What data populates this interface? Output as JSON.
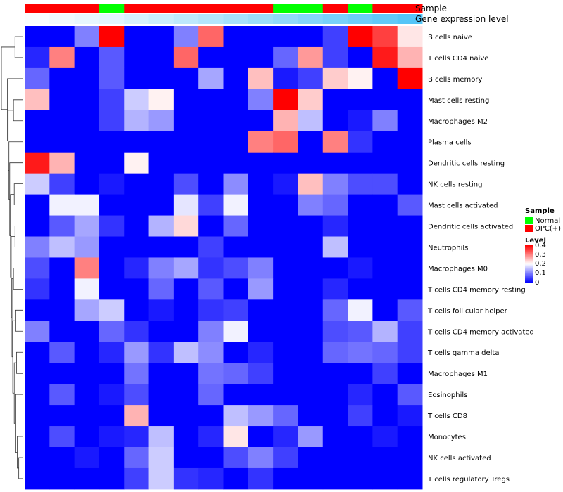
{
  "chart_data": {
    "type": "heatmap",
    "title": "",
    "color_scale": {
      "low": "#0000FF",
      "mid": "#FFFFFF",
      "high": "#FF0000",
      "min": 0,
      "mid_value": 0.2,
      "max": 0.4
    },
    "annotations": [
      {
        "name": "Sample",
        "values": [
          "OPC(+)",
          "OPC(+)",
          "OPC(+)",
          "Normal",
          "OPC(+)",
          "OPC(+)",
          "OPC(+)",
          "OPC(+)",
          "OPC(+)",
          "OPC(+)",
          "Normal",
          "Normal",
          "OPC(+)",
          "Normal",
          "OPC(+)",
          "OPC(+)"
        ]
      },
      {
        "name": "Gene expression level",
        "values": [
          0.02,
          0.05,
          0.08,
          0.1,
          0.14,
          0.18,
          0.22,
          0.26,
          0.3,
          0.34,
          0.38,
          0.42,
          0.46,
          0.5,
          0.54,
          0.58
        ]
      }
    ],
    "rows": [
      "B cells naive",
      "T cells CD4 naive",
      "B cells memory",
      "Mast cells resting",
      "Macrophages M2",
      "Plasma cells",
      "Dendritic cells resting",
      "NK cells resting",
      "Mast cells activated",
      "Dendritic cells activated",
      "Neutrophils",
      "Macrophages M0",
      "T cells CD4 memory resting",
      "T cells follicular helper",
      "T cells CD4 memory activated",
      "T cells gamma delta",
      "Macrophages M1",
      "Eosinophils",
      "T cells CD8",
      "Monocytes",
      "NK cells activated",
      "T cells regulatory  Tregs"
    ],
    "values": [
      [
        0,
        0,
        0.1,
        0.4,
        0,
        0,
        0.1,
        0.32,
        0,
        0,
        0,
        0,
        0.05,
        0.4,
        0.35,
        0.22
      ],
      [
        0.03,
        0.3,
        0,
        0.07,
        0,
        0,
        0.32,
        0,
        0,
        0,
        0.08,
        0.28,
        0.05,
        0,
        0.38,
        0.26
      ],
      [
        0.08,
        0,
        0,
        0.07,
        0,
        0,
        0,
        0.13,
        0,
        0.25,
        0.02,
        0.05,
        0.24,
        0.21,
        0,
        0.4
      ],
      [
        0.25,
        0,
        0,
        0.05,
        0.16,
        0.21,
        0,
        0,
        0,
        0.1,
        0.4,
        0.24,
        0,
        0,
        0,
        0
      ],
      [
        0,
        0,
        0,
        0.05,
        0.14,
        0.12,
        0,
        0,
        0,
        0,
        0.26,
        0.15,
        0,
        0.02,
        0.1,
        0
      ],
      [
        0,
        0,
        0,
        0,
        0,
        0,
        0,
        0,
        0,
        0.3,
        0.32,
        0,
        0.3,
        0.04,
        0,
        0
      ],
      [
        0.38,
        0.26,
        0,
        0,
        0.21,
        0,
        0,
        0,
        0,
        0,
        0,
        0,
        0,
        0,
        0,
        0
      ],
      [
        0.16,
        0.05,
        0,
        0.02,
        0,
        0,
        0.06,
        0,
        0.11,
        0,
        0.02,
        0.25,
        0.1,
        0.06,
        0.06,
        0
      ],
      [
        0,
        0.19,
        0.19,
        0,
        0,
        0,
        0.18,
        0.05,
        0.19,
        0,
        0,
        0.1,
        0.08,
        0,
        0,
        0.07
      ],
      [
        0,
        0.07,
        0.13,
        0.04,
        0,
        0.14,
        0.23,
        0,
        0.08,
        0,
        0,
        0,
        0.03,
        0,
        0,
        0
      ],
      [
        0.1,
        0.15,
        0.12,
        0,
        0,
        0,
        0,
        0.05,
        0,
        0,
        0,
        0,
        0.15,
        0,
        0,
        0
      ],
      [
        0.06,
        0,
        0.3,
        0,
        0.03,
        0.1,
        0.13,
        0.04,
        0.06,
        0.1,
        0,
        0,
        0,
        0.02,
        0,
        0
      ],
      [
        0.04,
        0,
        0.19,
        0,
        0,
        0.08,
        0,
        0.07,
        0,
        0.12,
        0,
        0,
        0.03,
        0,
        0,
        0
      ],
      [
        0,
        0,
        0.13,
        0.16,
        0,
        0.02,
        0,
        0.04,
        0.05,
        0,
        0,
        0,
        0.08,
        0.19,
        0,
        0.07
      ],
      [
        0.1,
        0,
        0,
        0.08,
        0.04,
        0,
        0,
        0.1,
        0.19,
        0,
        0,
        0,
        0.06,
        0.07,
        0.14,
        0.05
      ],
      [
        0,
        0.07,
        0,
        0.03,
        0.12,
        0.04,
        0.15,
        0.11,
        0,
        0.03,
        0,
        0,
        0.08,
        0.09,
        0.08,
        0.05
      ],
      [
        0,
        0,
        0,
        0,
        0.09,
        0,
        0,
        0.09,
        0.08,
        0.05,
        0,
        0,
        0,
        0,
        0.05,
        0
      ],
      [
        0,
        0.07,
        0,
        0.02,
        0.06,
        0,
        0,
        0.08,
        0,
        0,
        0,
        0,
        0,
        0.03,
        0,
        0.07
      ],
      [
        0,
        0,
        0,
        0,
        0.26,
        0,
        0,
        0,
        0.15,
        0.12,
        0.08,
        0,
        0,
        0.05,
        0,
        0.02
      ],
      [
        0,
        0.06,
        0,
        0.02,
        0.03,
        0.15,
        0,
        0.03,
        0.22,
        0,
        0.03,
        0.12,
        0,
        0,
        0.02,
        0
      ],
      [
        0,
        0,
        0.02,
        0,
        0.08,
        0.16,
        0,
        0,
        0.06,
        0.1,
        0.05,
        0,
        0,
        0,
        0,
        0
      ],
      [
        0,
        0,
        0,
        0,
        0.05,
        0.16,
        0.04,
        0.03,
        0,
        0.04,
        0,
        0,
        0,
        0,
        0,
        0
      ]
    ],
    "dendrogram": [
      [
        0,
        1,
        10
      ],
      [
        20,
        21,
        5
      ],
      [
        19,
        "m1",
        7
      ],
      [
        17,
        "m2",
        9
      ],
      [
        15,
        16,
        8
      ],
      [
        "m3",
        "m4",
        11
      ],
      [
        13,
        14,
        9
      ],
      [
        "m5",
        "m6",
        13
      ],
      [
        11,
        12,
        12
      ],
      [
        "m7",
        "m8",
        14
      ],
      [
        9,
        10,
        10
      ],
      [
        "m9",
        "m10",
        15
      ],
      [
        7,
        8,
        11
      ],
      [
        "m11",
        "m12",
        16
      ],
      [
        6,
        "m13",
        17
      ],
      [
        5,
        "m14",
        18
      ],
      [
        3,
        4,
        12
      ],
      [
        "m15",
        "m16",
        19
      ],
      [
        2,
        "m17",
        20
      ],
      [
        "m0",
        "m18",
        28
      ]
    ],
    "legends": {
      "sample": {
        "title": "Sample",
        "items": [
          {
            "label": "Normal",
            "color": "#00FF00"
          },
          {
            "label": "OPC(+)",
            "color": "#FF0000"
          }
        ]
      },
      "level": {
        "title": "Level",
        "ticks": [
          "0.4",
          "0.3",
          "0.2",
          "0.1",
          "0"
        ],
        "tick_values": [
          0.4,
          0.3,
          0.2,
          0.1,
          0
        ]
      }
    }
  },
  "colors": {
    "normal": "#00FF00",
    "opc": "#FF0000",
    "gene_low": "#FFFFFF",
    "gene_high": "#4FC3F7",
    "dendrogram": "#333333"
  }
}
